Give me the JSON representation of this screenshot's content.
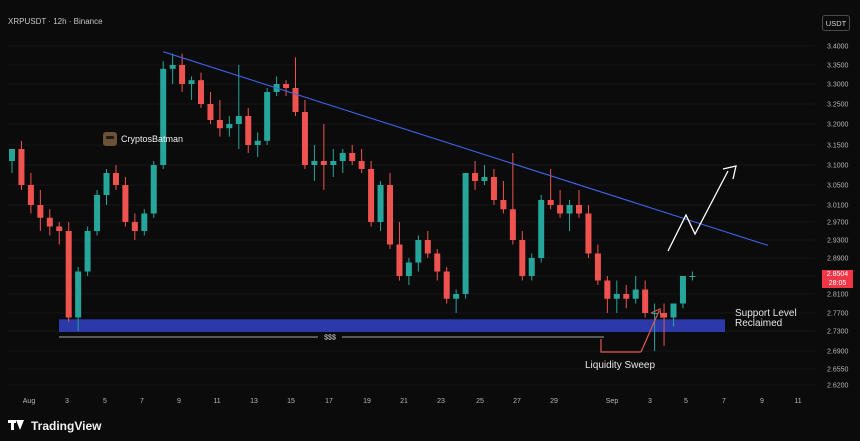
{
  "header": {
    "symbol": "XRPUSDT · 12h · Binance",
    "currency_button": "USDT"
  },
  "author": {
    "name": "CryptosBatman"
  },
  "annotations": {
    "support_line1": "Support Level",
    "support_line2": "Reclaimed",
    "sweep": "Liquidity Sweep",
    "dollars": "$$$"
  },
  "price_badge": {
    "price": "2.8504",
    "countdown": "28:05"
  },
  "footer": {
    "brand": "TradingView"
  },
  "colors": {
    "up": "#26a69a",
    "down": "#ef5350",
    "trendline": "#3f63e8",
    "support_zone": "#2b3aa8",
    "badge": "#f23645"
  },
  "chart_data": {
    "type": "candlestick",
    "interval": "12h",
    "x_ticks": [
      "Aug",
      "3",
      "5",
      "7",
      "9",
      "11",
      "13",
      "15",
      "17",
      "19",
      "21",
      "23",
      "25",
      "27",
      "29",
      "Sep",
      "3",
      "5",
      "7",
      "9",
      "11"
    ],
    "y_ticks": [
      "3.4000",
      "3.3500",
      "3.3000",
      "3.2500",
      "3.2000",
      "3.1500",
      "3.1000",
      "3.0500",
      "3.0100",
      "2.9700",
      "2.9300",
      "2.8900",
      "2.8500",
      "2.8100",
      "2.7700",
      "2.7300",
      "2.6900",
      "2.6550",
      "2.6200"
    ],
    "ylim": [
      2.6,
      3.43
    ],
    "candles": [
      {
        "o": 3.11,
        "h": 3.14,
        "l": 3.08,
        "c": 3.14
      },
      {
        "o": 3.14,
        "h": 3.16,
        "l": 3.04,
        "c": 3.05
      },
      {
        "o": 3.05,
        "h": 3.08,
        "l": 2.99,
        "c": 3.01
      },
      {
        "o": 3.01,
        "h": 3.04,
        "l": 2.95,
        "c": 2.98
      },
      {
        "o": 2.98,
        "h": 3.0,
        "l": 2.94,
        "c": 2.96
      },
      {
        "o": 2.96,
        "h": 2.97,
        "l": 2.92,
        "c": 2.95
      },
      {
        "o": 2.95,
        "h": 2.97,
        "l": 2.75,
        "c": 2.76
      },
      {
        "o": 2.76,
        "h": 2.87,
        "l": 2.73,
        "c": 2.86
      },
      {
        "o": 2.86,
        "h": 2.96,
        "l": 2.85,
        "c": 2.95
      },
      {
        "o": 2.95,
        "h": 3.04,
        "l": 2.94,
        "c": 3.03
      },
      {
        "o": 3.03,
        "h": 3.09,
        "l": 3.01,
        "c": 3.08
      },
      {
        "o": 3.08,
        "h": 3.1,
        "l": 3.04,
        "c": 3.05
      },
      {
        "o": 3.05,
        "h": 3.07,
        "l": 2.96,
        "c": 2.97
      },
      {
        "o": 2.97,
        "h": 2.99,
        "l": 2.93,
        "c": 2.95
      },
      {
        "o": 2.95,
        "h": 3.0,
        "l": 2.94,
        "c": 2.99
      },
      {
        "o": 2.99,
        "h": 3.11,
        "l": 2.98,
        "c": 3.1
      },
      {
        "o": 3.1,
        "h": 3.36,
        "l": 3.09,
        "c": 3.34
      },
      {
        "o": 3.34,
        "h": 3.38,
        "l": 3.3,
        "c": 3.35
      },
      {
        "o": 3.35,
        "h": 3.38,
        "l": 3.28,
        "c": 3.3
      },
      {
        "o": 3.3,
        "h": 3.32,
        "l": 3.26,
        "c": 3.31
      },
      {
        "o": 3.31,
        "h": 3.33,
        "l": 3.24,
        "c": 3.25
      },
      {
        "o": 3.25,
        "h": 3.28,
        "l": 3.2,
        "c": 3.21
      },
      {
        "o": 3.21,
        "h": 3.26,
        "l": 3.17,
        "c": 3.19
      },
      {
        "o": 3.19,
        "h": 3.22,
        "l": 3.17,
        "c": 3.2
      },
      {
        "o": 3.2,
        "h": 3.35,
        "l": 3.14,
        "c": 3.22
      },
      {
        "o": 3.22,
        "h": 3.24,
        "l": 3.13,
        "c": 3.15
      },
      {
        "o": 3.15,
        "h": 3.18,
        "l": 3.12,
        "c": 3.16
      },
      {
        "o": 3.16,
        "h": 3.29,
        "l": 3.15,
        "c": 3.28
      },
      {
        "o": 3.28,
        "h": 3.32,
        "l": 3.27,
        "c": 3.3
      },
      {
        "o": 3.3,
        "h": 3.31,
        "l": 3.27,
        "c": 3.29
      },
      {
        "o": 3.29,
        "h": 3.37,
        "l": 3.22,
        "c": 3.23
      },
      {
        "o": 3.23,
        "h": 3.26,
        "l": 3.09,
        "c": 3.1
      },
      {
        "o": 3.1,
        "h": 3.15,
        "l": 3.06,
        "c": 3.11
      },
      {
        "o": 3.11,
        "h": 3.2,
        "l": 3.04,
        "c": 3.1
      },
      {
        "o": 3.1,
        "h": 3.14,
        "l": 3.07,
        "c": 3.11
      },
      {
        "o": 3.11,
        "h": 3.14,
        "l": 3.08,
        "c": 3.13
      },
      {
        "o": 3.13,
        "h": 3.15,
        "l": 3.1,
        "c": 3.11
      },
      {
        "o": 3.11,
        "h": 3.14,
        "l": 3.08,
        "c": 3.09
      },
      {
        "o": 3.09,
        "h": 3.11,
        "l": 2.96,
        "c": 2.97
      },
      {
        "o": 2.97,
        "h": 3.06,
        "l": 2.95,
        "c": 3.05
      },
      {
        "o": 3.05,
        "h": 3.08,
        "l": 2.91,
        "c": 2.92
      },
      {
        "o": 2.92,
        "h": 2.97,
        "l": 2.84,
        "c": 2.85
      },
      {
        "o": 2.85,
        "h": 2.89,
        "l": 2.83,
        "c": 2.88
      },
      {
        "o": 2.88,
        "h": 2.94,
        "l": 2.86,
        "c": 2.93
      },
      {
        "o": 2.93,
        "h": 2.95,
        "l": 2.89,
        "c": 2.9
      },
      {
        "o": 2.9,
        "h": 2.91,
        "l": 2.84,
        "c": 2.86
      },
      {
        "o": 2.86,
        "h": 2.87,
        "l": 2.79,
        "c": 2.8
      },
      {
        "o": 2.8,
        "h": 2.82,
        "l": 2.77,
        "c": 2.81
      },
      {
        "o": 2.81,
        "h": 3.08,
        "l": 2.8,
        "c": 3.08
      },
      {
        "o": 3.08,
        "h": 3.11,
        "l": 3.04,
        "c": 3.06
      },
      {
        "o": 3.06,
        "h": 3.1,
        "l": 3.05,
        "c": 3.07
      },
      {
        "o": 3.07,
        "h": 3.09,
        "l": 3.01,
        "c": 3.02
      },
      {
        "o": 3.02,
        "h": 3.06,
        "l": 2.99,
        "c": 3.0
      },
      {
        "o": 3.0,
        "h": 3.13,
        "l": 2.92,
        "c": 2.93
      },
      {
        "o": 2.93,
        "h": 2.95,
        "l": 2.84,
        "c": 2.85
      },
      {
        "o": 2.85,
        "h": 2.9,
        "l": 2.84,
        "c": 2.89
      },
      {
        "o": 2.89,
        "h": 3.03,
        "l": 2.88,
        "c": 3.02
      },
      {
        "o": 3.02,
        "h": 3.09,
        "l": 3.0,
        "c": 3.01
      },
      {
        "o": 3.01,
        "h": 3.04,
        "l": 2.98,
        "c": 2.99
      },
      {
        "o": 2.99,
        "h": 3.02,
        "l": 2.95,
        "c": 3.01
      },
      {
        "o": 3.01,
        "h": 3.04,
        "l": 2.98,
        "c": 2.99
      },
      {
        "o": 2.99,
        "h": 3.01,
        "l": 2.89,
        "c": 2.9
      },
      {
        "o": 2.9,
        "h": 2.92,
        "l": 2.83,
        "c": 2.84
      },
      {
        "o": 2.84,
        "h": 2.85,
        "l": 2.77,
        "c": 2.8
      },
      {
        "o": 2.8,
        "h": 2.84,
        "l": 2.77,
        "c": 2.81
      },
      {
        "o": 2.81,
        "h": 2.83,
        "l": 2.78,
        "c": 2.8
      },
      {
        "o": 2.8,
        "h": 2.85,
        "l": 2.79,
        "c": 2.82
      },
      {
        "o": 2.82,
        "h": 2.84,
        "l": 2.76,
        "c": 2.77
      },
      {
        "o": 2.77,
        "h": 2.79,
        "l": 2.69,
        "c": 2.77
      },
      {
        "o": 2.77,
        "h": 2.79,
        "l": 2.7,
        "c": 2.76
      },
      {
        "o": 2.76,
        "h": 2.79,
        "l": 2.74,
        "c": 2.79
      },
      {
        "o": 2.79,
        "h": 2.85,
        "l": 2.78,
        "c": 2.85
      },
      {
        "o": 2.85,
        "h": 2.86,
        "l": 2.84,
        "c": 2.85
      }
    ],
    "trendline": [
      {
        "i": 16,
        "p": 3.385
      },
      {
        "i": 80,
        "p": 2.918
      }
    ],
    "support_zone": [
      2.728,
      2.756
    ],
    "liquidity_level": 2.718
  }
}
